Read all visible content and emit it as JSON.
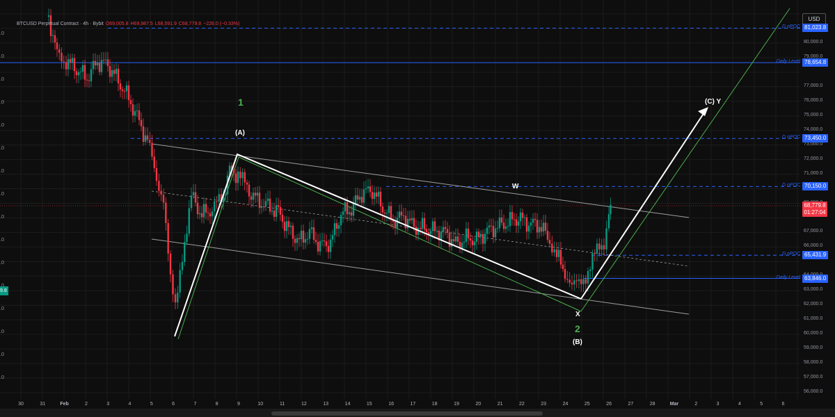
{
  "header": {
    "symbol": "BTCUSD Perpetual Contract · 4h · Bybit",
    "open": "O69,005.8",
    "high": "H69,987.5",
    "low": "L68,591.9",
    "close": "C68,779.8",
    "change": "−226.0 (−0.33%)"
  },
  "currency": "USD",
  "current_price": {
    "price": "68,779.8",
    "countdown": "01:27:04"
  },
  "left_badge": "9.8",
  "levels": [
    {
      "label": "D nPOC",
      "price": "81,023.8",
      "value": 81023.8,
      "style": "dashed"
    },
    {
      "label": "Daily Level",
      "price": "78,654.8",
      "value": 78654.8,
      "style": "solid"
    },
    {
      "label": "D nPOC",
      "price": "73,450.0",
      "value": 73450.0,
      "style": "dashed"
    },
    {
      "label": "D nPOC",
      "price": "70,150.0",
      "value": 70150.0,
      "style": "dashed"
    },
    {
      "label": "D nPOC",
      "price": "65,431.9",
      "value": 65431.9,
      "style": "dashed"
    },
    {
      "label": "Daily Level",
      "price": "63,846.0",
      "value": 63846.0,
      "style": "solid"
    }
  ],
  "y_axis_ticks": [
    "80,000.0",
    "79,000.0",
    "77,000.0",
    "76,000.0",
    "75,000.0",
    "74,000.0",
    "73,000.0",
    "72,000.0",
    "71,000.0",
    "69,000.0",
    "67,000.0",
    "66,000.0",
    "64,000.0",
    "63,000.0",
    "62,000.0",
    "61,000.0",
    "60,000.0",
    "59,000.0",
    "58,000.0",
    "57,000.0",
    "56,000.0"
  ],
  "y_axis_left_ticks": [
    ".0",
    ".0",
    ".0",
    ".0",
    ".0",
    ".0",
    ".0",
    ".0",
    ".0",
    ".0",
    ".0",
    ".0",
    ".0",
    ".0",
    ".0",
    ".0"
  ],
  "x_axis_ticks": [
    "30",
    "31",
    "Feb",
    "2",
    "3",
    "4",
    "5",
    "6",
    "7",
    "8",
    "9",
    "10",
    "11",
    "12",
    "13",
    "14",
    "15",
    "16",
    "17",
    "18",
    "19",
    "20",
    "21",
    "22",
    "23",
    "24",
    "25",
    "26",
    "27",
    "28",
    "Mar",
    "2",
    "3",
    "4",
    "5",
    "6"
  ],
  "annotations": {
    "wave_1": "1",
    "wave_A": "(A)",
    "wave_W": "W",
    "wave_C_Y": "(C)  Y",
    "wave_X": "X",
    "wave_2": "2",
    "wave_B": "(B)"
  },
  "colors": {
    "background": "#0e0e0e",
    "up": "#089981",
    "down": "#f23645",
    "level": "#2962ff",
    "wave_line": "#ffffff",
    "channel_green": "#4caf50",
    "channel_gray": "#9e9e9e"
  }
}
